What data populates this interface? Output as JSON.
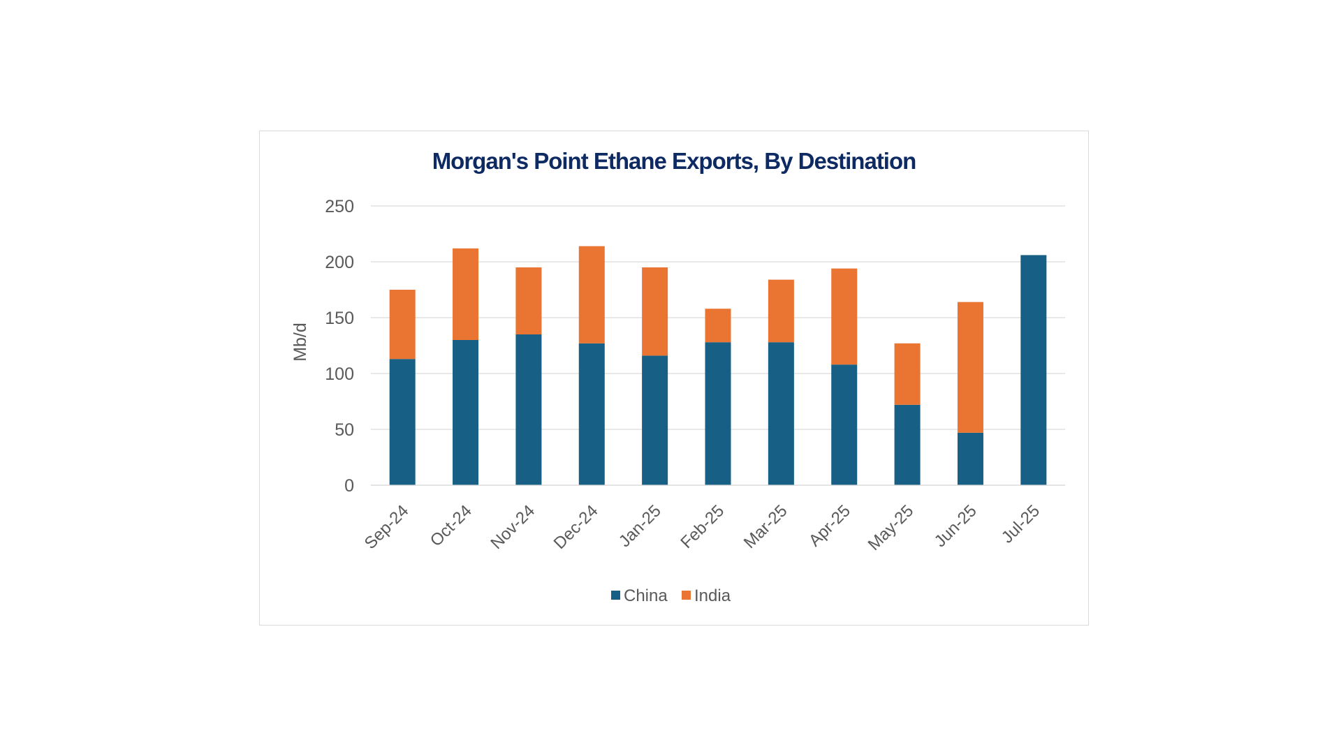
{
  "chart_data": {
    "type": "bar",
    "stacked": true,
    "title": "Morgan's Point Ethane Exports, By Destination",
    "xlabel": "",
    "ylabel": "Mb/d",
    "ylim": [
      0,
      250
    ],
    "yticks": [
      0,
      50,
      100,
      150,
      200,
      250
    ],
    "grid": true,
    "legend_position": "bottom",
    "categories": [
      "Sep-24",
      "Oct-24",
      "Nov-24",
      "Dec-24",
      "Jan-25",
      "Feb-25",
      "Mar-25",
      "Apr-25",
      "May-25",
      "Jun-25",
      "Jul-25"
    ],
    "series": [
      {
        "name": "China",
        "color": "#175f84",
        "values": [
          113,
          130,
          135,
          127,
          116,
          128,
          128,
          108,
          72,
          47,
          206
        ]
      },
      {
        "name": "India",
        "color": "#ea7431",
        "values": [
          62,
          82,
          60,
          87,
          79,
          30,
          56,
          86,
          55,
          117,
          0
        ]
      }
    ]
  }
}
